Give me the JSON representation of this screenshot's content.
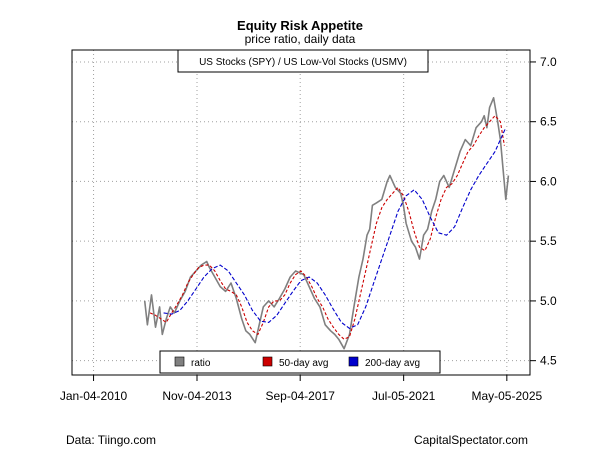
{
  "colors": {
    "ratio": "#808080",
    "ma50": "#cc0000",
    "ma200": "#0000cc",
    "grid": "#a0a0a0"
  },
  "chart_data": {
    "type": "line",
    "title": "Equity Risk Appetite",
    "subtitle": "price ratio, daily data",
    "series_box_label": "US Stocks (SPY) / US Low-Vol Stocks (USMV)",
    "x_tick_labels": [
      "Jan-04-2010",
      "Nov-04-2013",
      "Sep-04-2017",
      "Jul-05-2021",
      "May-05-2025"
    ],
    "y_ticks": [
      4.5,
      5.0,
      5.5,
      6.0,
      6.5,
      7.0
    ],
    "y_tick_labels": [
      "4.5",
      "5.0",
      "5.5",
      "6.0",
      "6.5",
      "7.0"
    ],
    "xlim": [
      2009.2,
      2026.2
    ],
    "ylim": [
      4.38,
      7.1
    ],
    "axis_side_y": "right",
    "grid": true,
    "legend_position": "bottom-center",
    "legend": [
      {
        "label": "ratio",
        "color": "#808080"
      },
      {
        "label": "50-day avg",
        "color": "#cc0000"
      },
      {
        "label": "200-day avg",
        "color": "#0000cc"
      }
    ],
    "series": [
      {
        "name": "ratio",
        "style": "solid",
        "x": [
          2011.9,
          2012.0,
          2012.15,
          2012.3,
          2012.45,
          2012.55,
          2012.7,
          2012.85,
          2013.0,
          2013.2,
          2013.4,
          2013.6,
          2013.8,
          2014.0,
          2014.2,
          2014.3,
          2014.5,
          2014.7,
          2014.9,
          2015.1,
          2015.3,
          2015.5,
          2015.65,
          2015.8,
          2016.0,
          2016.15,
          2016.3,
          2016.5,
          2016.7,
          2016.9,
          2017.1,
          2017.3,
          2017.5,
          2017.8,
          2018.0,
          2018.2,
          2018.4,
          2018.6,
          2018.8,
          2018.95,
          2019.1,
          2019.3,
          2019.5,
          2019.7,
          2019.85,
          2020.0,
          2020.15,
          2020.25,
          2020.35,
          2020.5,
          2020.7,
          2020.9,
          2021.0,
          2021.2,
          2021.4,
          2021.5,
          2021.6,
          2021.8,
          2021.95,
          2022.1,
          2022.25,
          2022.4,
          2022.55,
          2022.7,
          2022.85,
          2023.0,
          2023.2,
          2023.4,
          2023.6,
          2023.8,
          2024.0,
          2024.2,
          2024.4,
          2024.5,
          2024.6,
          2024.7,
          2024.85,
          2025.0,
          2025.1,
          2025.2,
          2025.3,
          2025.4
        ],
        "values": [
          5.0,
          4.8,
          5.05,
          4.78,
          4.95,
          4.72,
          4.85,
          4.95,
          4.9,
          5.0,
          5.08,
          5.2,
          5.25,
          5.3,
          5.33,
          5.28,
          5.2,
          5.12,
          5.08,
          5.15,
          5.02,
          4.85,
          4.75,
          4.72,
          4.65,
          4.8,
          4.95,
          5.0,
          4.95,
          5.02,
          5.1,
          5.2,
          5.25,
          5.22,
          5.12,
          5.02,
          4.95,
          4.8,
          4.75,
          4.72,
          4.68,
          4.6,
          4.72,
          5.0,
          5.2,
          5.35,
          5.55,
          5.6,
          5.8,
          5.82,
          5.85,
          6.0,
          6.05,
          5.95,
          5.9,
          5.8,
          5.65,
          5.5,
          5.45,
          5.35,
          5.55,
          5.6,
          5.75,
          5.85,
          6.0,
          6.05,
          5.95,
          6.1,
          6.25,
          6.35,
          6.3,
          6.45,
          6.5,
          6.55,
          6.45,
          6.62,
          6.7,
          6.5,
          6.35,
          6.1,
          5.85,
          6.05
        ]
      },
      {
        "name": "50-day avg",
        "style": "dashed",
        "x": [
          2012.1,
          2012.3,
          2012.5,
          2012.7,
          2012.9,
          2013.1,
          2013.3,
          2013.5,
          2013.7,
          2013.9,
          2014.1,
          2014.3,
          2014.5,
          2014.7,
          2014.9,
          2015.1,
          2015.3,
          2015.5,
          2015.7,
          2015.9,
          2016.1,
          2016.3,
          2016.5,
          2016.7,
          2016.9,
          2017.1,
          2017.3,
          2017.5,
          2017.7,
          2017.9,
          2018.1,
          2018.3,
          2018.5,
          2018.7,
          2018.9,
          2019.1,
          2019.3,
          2019.5,
          2019.7,
          2019.9,
          2020.1,
          2020.3,
          2020.5,
          2020.7,
          2020.9,
          2021.1,
          2021.3,
          2021.5,
          2021.7,
          2021.9,
          2022.1,
          2022.3,
          2022.5,
          2022.7,
          2022.9,
          2023.1,
          2023.3,
          2023.5,
          2023.7,
          2023.9,
          2024.1,
          2024.3,
          2024.5,
          2024.7,
          2024.9,
          2025.1,
          2025.25
        ],
        "values": [
          4.9,
          4.88,
          4.85,
          4.82,
          4.9,
          4.97,
          5.05,
          5.15,
          5.22,
          5.28,
          5.3,
          5.3,
          5.25,
          5.17,
          5.1,
          5.08,
          5.05,
          4.95,
          4.82,
          4.75,
          4.72,
          4.82,
          4.95,
          5.0,
          5.0,
          5.05,
          5.15,
          5.22,
          5.25,
          5.2,
          5.12,
          5.02,
          4.95,
          4.85,
          4.78,
          4.72,
          4.68,
          4.7,
          4.85,
          5.05,
          5.25,
          5.45,
          5.65,
          5.78,
          5.85,
          5.9,
          5.95,
          5.88,
          5.75,
          5.58,
          5.45,
          5.42,
          5.52,
          5.7,
          5.85,
          5.95,
          5.98,
          6.05,
          6.15,
          6.25,
          6.3,
          6.38,
          6.45,
          6.5,
          6.55,
          6.5,
          6.3
        ]
      },
      {
        "name": "200-day avg",
        "style": "dashed",
        "x": [
          2012.6,
          2012.9,
          2013.2,
          2013.5,
          2013.8,
          2014.1,
          2014.4,
          2014.7,
          2015.0,
          2015.3,
          2015.6,
          2015.9,
          2016.2,
          2016.5,
          2016.8,
          2017.1,
          2017.4,
          2017.7,
          2018.0,
          2018.3,
          2018.6,
          2018.9,
          2019.2,
          2019.5,
          2019.8,
          2020.1,
          2020.4,
          2020.7,
          2021.0,
          2021.3,
          2021.6,
          2021.9,
          2022.2,
          2022.5,
          2022.8,
          2023.1,
          2023.4,
          2023.7,
          2024.0,
          2024.3,
          2024.6,
          2024.9,
          2025.1,
          2025.3
        ],
        "values": [
          4.9,
          4.89,
          4.92,
          5.0,
          5.1,
          5.2,
          5.27,
          5.3,
          5.25,
          5.15,
          5.05,
          4.92,
          4.83,
          4.82,
          4.88,
          4.98,
          5.08,
          5.17,
          5.2,
          5.15,
          5.05,
          4.93,
          4.82,
          4.77,
          4.8,
          4.95,
          5.15,
          5.35,
          5.55,
          5.75,
          5.88,
          5.93,
          5.85,
          5.7,
          5.57,
          5.55,
          5.62,
          5.78,
          5.93,
          6.05,
          6.15,
          6.25,
          6.35,
          6.45
        ]
      }
    ]
  },
  "footer": {
    "source_left": "Data: Tiingo.com",
    "source_right": "CapitalSpectator.com"
  }
}
